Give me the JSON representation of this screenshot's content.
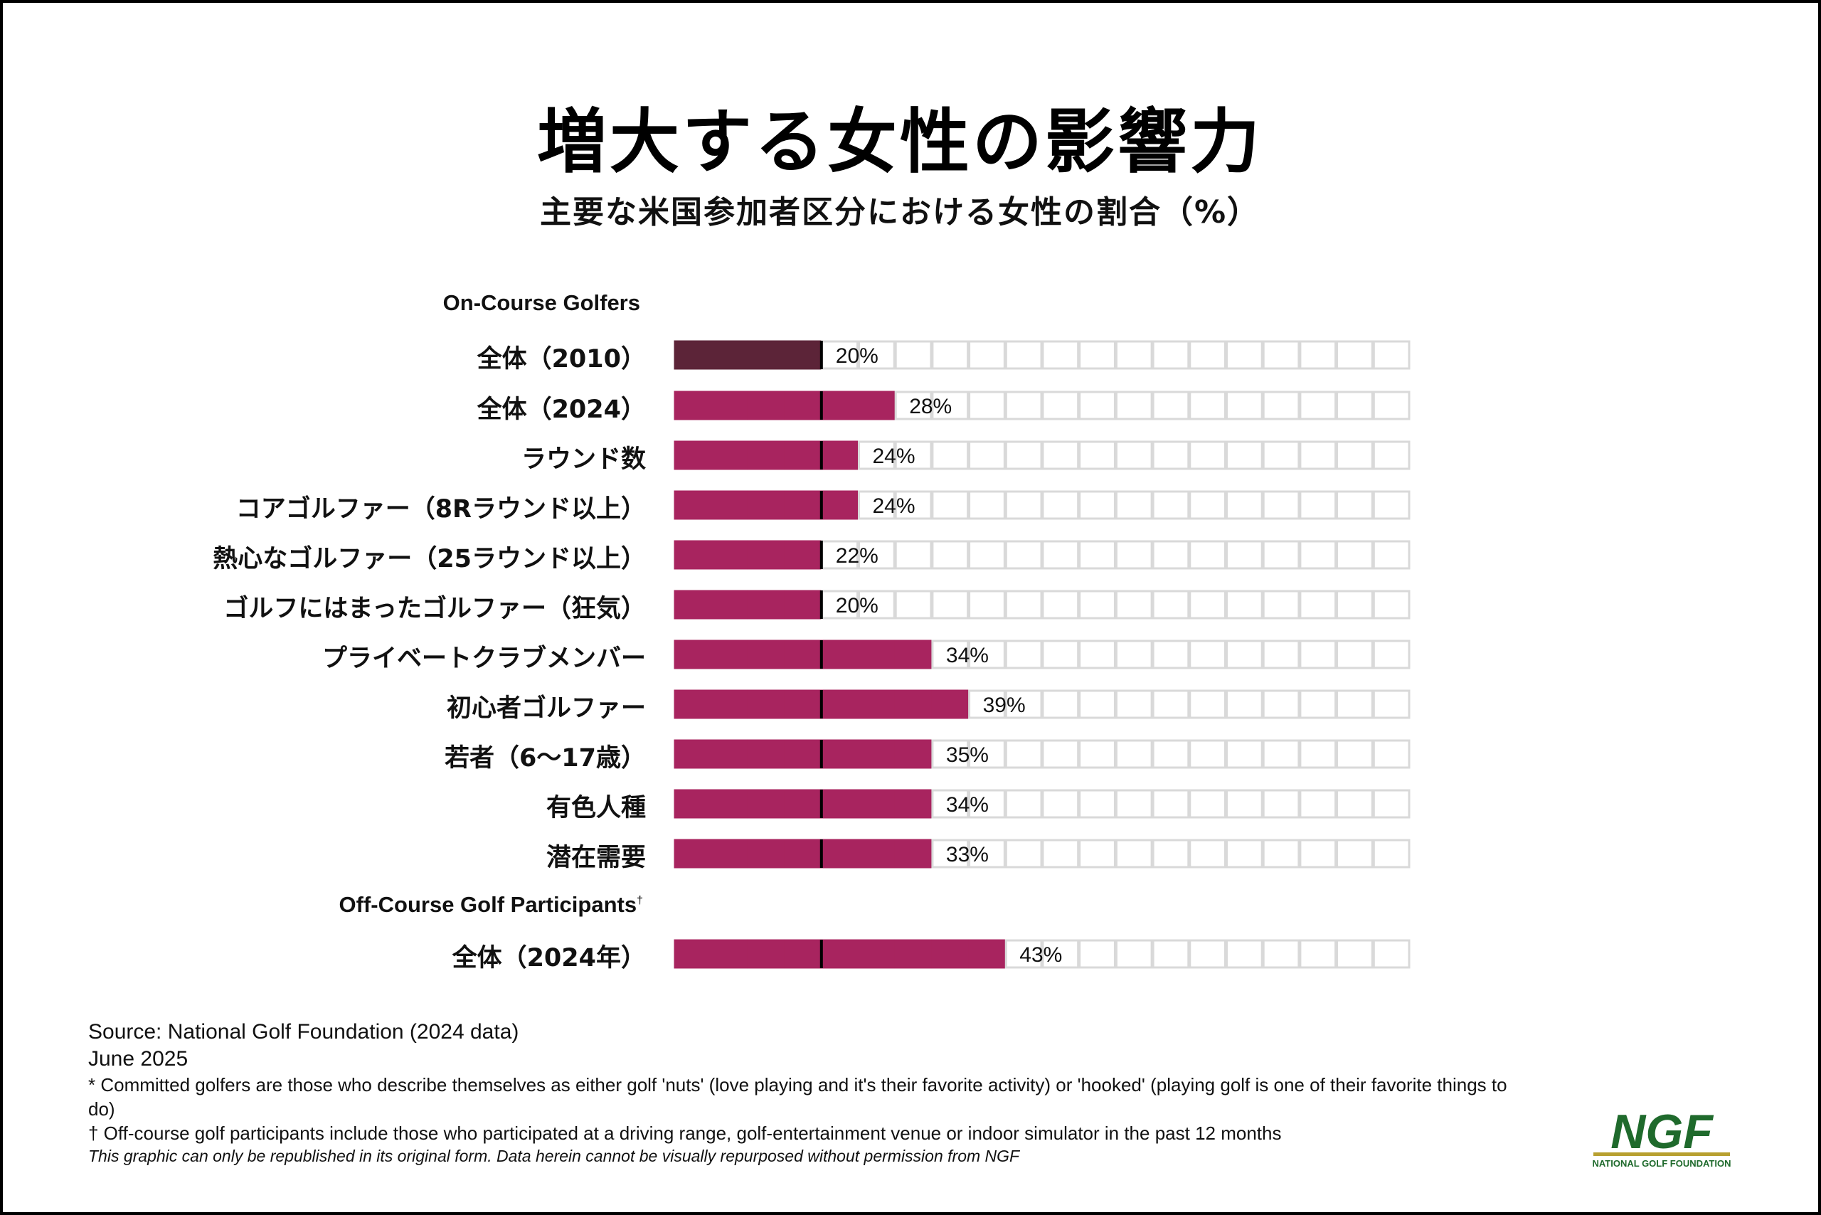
{
  "title": "増大する女性の影響力",
  "subtitle": "主要な米国参加者区分における女性の割合（%）",
  "sections": {
    "on_course": "On-Course Golfers",
    "off_course": "Off-Course Golf Participants",
    "off_course_mark": "†"
  },
  "chart_data": {
    "type": "bar",
    "orientation": "horizontal",
    "unit": "%",
    "xlim": [
      0,
      100
    ],
    "cell_step": 5,
    "reference_line": 20,
    "colors": {
      "baseline_2010": "#5c2438",
      "current": "#a8245f",
      "empty_cell": "#ffffff",
      "cell_border": "#d9d9d9"
    },
    "groups": [
      {
        "section": "On-Course Golfers",
        "categories": [
          "全体（2010）",
          "全体（2024）",
          "ラウンド数",
          "コアゴルファー（8Rラウンド以上）",
          "熱心なゴルファー（25ラウンド以上）",
          "ゴルフにはまったゴルファー（狂気）",
          "プライベートクラブメンバー",
          "初心者ゴルファー",
          "若者（6～17歳）",
          "有色人種",
          "潜在需要"
        ],
        "values": [
          20,
          28,
          24,
          24,
          22,
          20,
          34,
          39,
          35,
          34,
          33
        ],
        "labels": [
          "20%",
          "28%",
          "24%",
          "24%",
          "22%",
          "20%",
          "34%",
          "39%",
          "35%",
          "34%",
          "33%"
        ],
        "baseline_index": 0
      },
      {
        "section": "Off-Course Golf Participants",
        "categories": [
          "全体（2024年）"
        ],
        "values": [
          43
        ],
        "labels": [
          "43%"
        ]
      }
    ]
  },
  "footer": {
    "source": "Source: National Golf Foundation (2024 data)",
    "date": "June 2025",
    "note_committed": "* Committed golfers are those who describe themselves as either golf 'nuts' (love playing and it's their favorite activity) or 'hooked' (playing golf is one of their favorite things to do)",
    "note_offcourse": "† Off-course golf participants include those who participated at a driving range, golf-entertainment venue or indoor simulator in the past 12 months",
    "disclaimer": "This graphic can only be republished in its original form. Data herein cannot be visually repurposed without permission from NGF"
  },
  "logo": {
    "text": "NGF",
    "tagline": "NATIONAL GOLF FOUNDATION",
    "colors": {
      "text": "#1f6a2c",
      "bar": "#b8a030"
    }
  }
}
